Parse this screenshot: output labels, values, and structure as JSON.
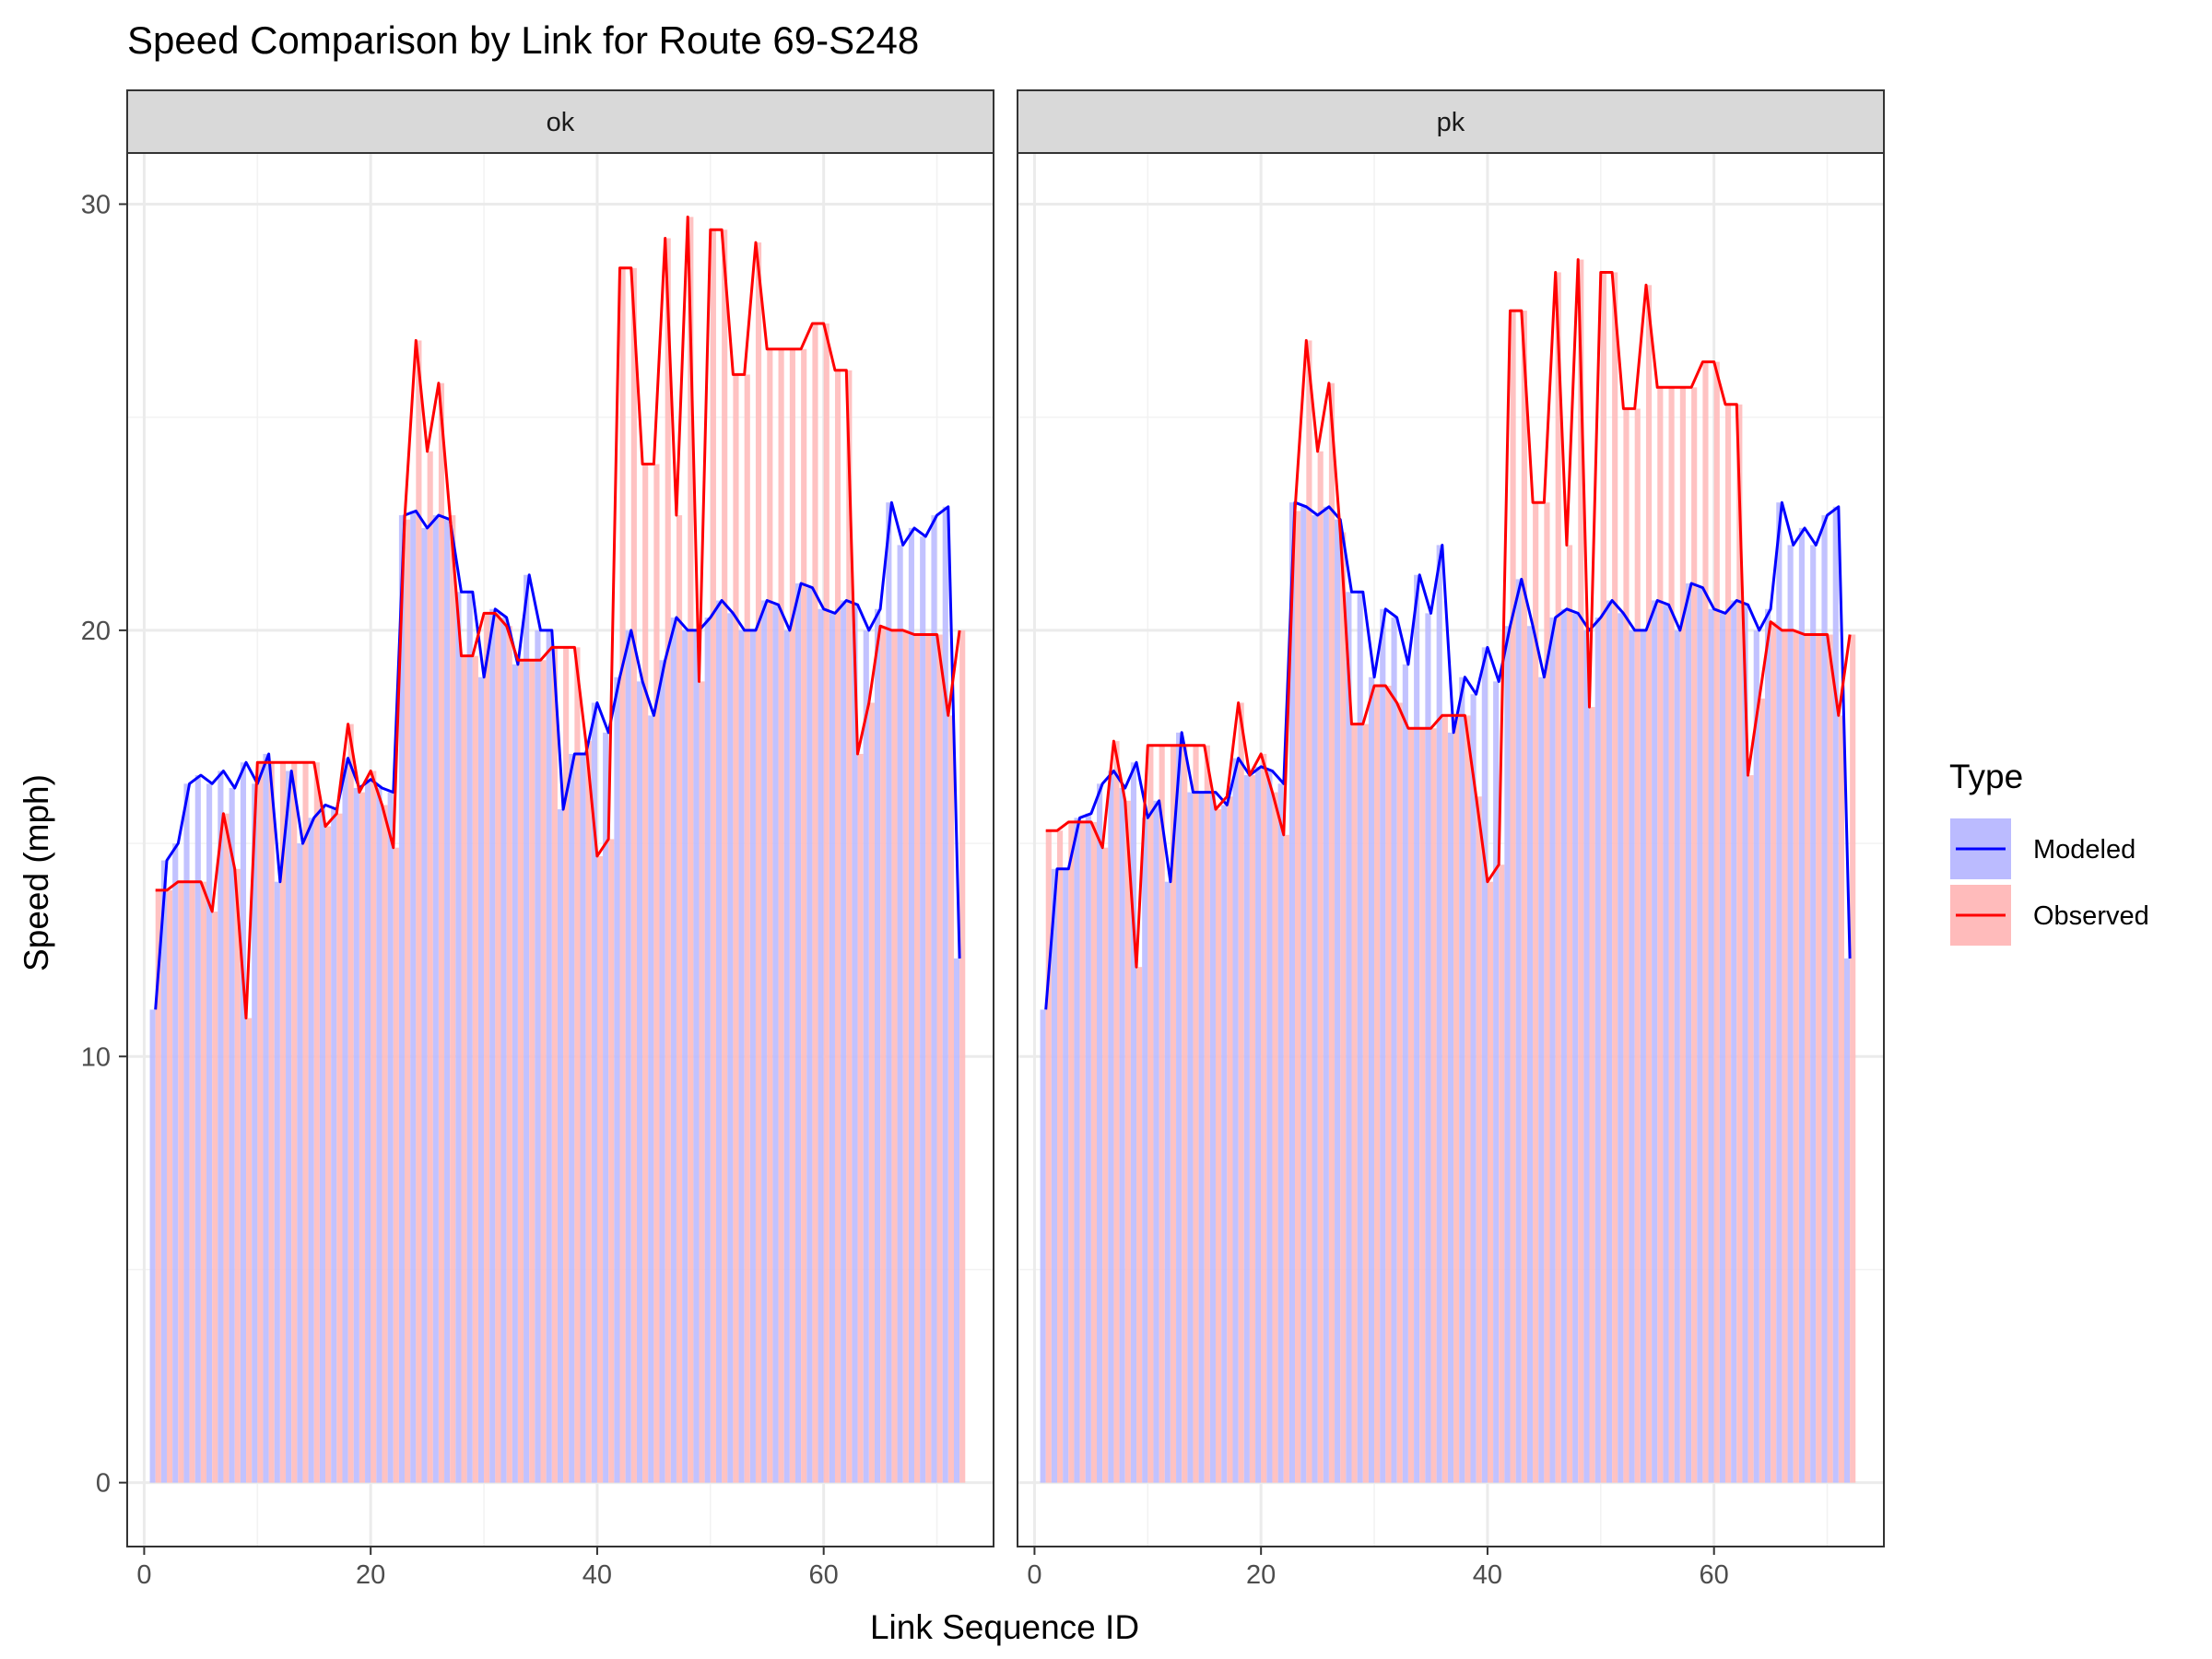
{
  "chart_data": {
    "type": "line",
    "title": "Speed Comparison by Link for Route 69-S248",
    "xlabel": "Link Sequence ID",
    "ylabel": "Speed (mph)",
    "xlim": [
      -1.5,
      75
    ],
    "ylim": [
      -1.5,
      31.2
    ],
    "x_ticks": [
      0,
      20,
      40,
      60
    ],
    "y_ticks": [
      0,
      10,
      20,
      30
    ],
    "grid": true,
    "legend": {
      "title": "Type",
      "position": "right",
      "entries": [
        {
          "label": "Modeled",
          "line_color": "#0000ff",
          "fill_color": "#bbbbff"
        },
        {
          "label": "Observed",
          "line_color": "#ff0000",
          "fill_color": "#ffbbbb"
        }
      ]
    },
    "x": [
      1,
      2,
      3,
      4,
      5,
      6,
      7,
      8,
      9,
      10,
      11,
      12,
      13,
      14,
      15,
      16,
      17,
      18,
      19,
      20,
      21,
      22,
      23,
      24,
      25,
      26,
      27,
      28,
      29,
      30,
      31,
      32,
      33,
      34,
      35,
      36,
      37,
      38,
      39,
      40,
      41,
      42,
      43,
      44,
      45,
      46,
      47,
      48,
      49,
      50,
      51,
      52,
      53,
      54,
      55,
      56,
      57,
      58,
      59,
      60,
      61,
      62,
      63,
      64,
      65,
      66,
      67,
      68,
      69,
      70,
      71,
      72
    ],
    "panels": [
      {
        "label": "ok",
        "series": [
          {
            "name": "Modeled",
            "values": [
              11.1,
              14.6,
              15.0,
              16.4,
              16.6,
              16.4,
              16.7,
              16.3,
              16.9,
              16.4,
              17.1,
              14.1,
              16.7,
              15.0,
              15.6,
              15.9,
              15.8,
              17.0,
              16.3,
              16.5,
              16.3,
              16.2,
              22.7,
              22.8,
              22.4,
              22.7,
              22.6,
              20.9,
              20.9,
              18.9,
              20.5,
              20.3,
              19.2,
              21.3,
              20.0,
              20.0,
              15.8,
              17.1,
              17.1,
              18.3,
              17.6,
              18.9,
              20.0,
              18.8,
              18.0,
              19.3,
              20.3,
              20.0,
              20.0,
              20.3,
              20.7,
              20.4,
              20.0,
              20.0,
              20.7,
              20.6,
              20.0,
              21.1,
              21.0,
              20.5,
              20.4,
              20.7,
              20.6,
              20.0,
              20.5,
              23.0,
              22.0,
              22.4,
              22.2,
              22.7,
              22.9,
              12.3
            ]
          },
          {
            "name": "Observed",
            "values": [
              13.9,
              13.9,
              14.1,
              14.1,
              14.1,
              13.4,
              15.7,
              14.4,
              10.9,
              16.9,
              16.9,
              16.9,
              16.9,
              16.9,
              16.9,
              15.4,
              15.7,
              17.8,
              16.2,
              16.7,
              15.9,
              14.9,
              22.6,
              26.8,
              24.2,
              25.8,
              22.7,
              19.4,
              19.4,
              20.4,
              20.4,
              20.1,
              19.3,
              19.3,
              19.3,
              19.6,
              19.6,
              19.6,
              17.4,
              14.7,
              15.1,
              28.5,
              28.5,
              23.9,
              23.9,
              29.2,
              22.7,
              29.7,
              18.8,
              29.4,
              29.4,
              26.0,
              26.0,
              29.1,
              26.6,
              26.6,
              26.6,
              26.6,
              27.2,
              27.2,
              26.1,
              26.1,
              17.1,
              18.3,
              20.1,
              20.0,
              20.0,
              19.9,
              19.9,
              19.9,
              18.0,
              20.0
            ]
          }
        ]
      },
      {
        "label": "pk",
        "series": [
          {
            "name": "Modeled",
            "values": [
              11.1,
              14.4,
              14.4,
              15.6,
              15.7,
              16.4,
              16.7,
              16.3,
              16.9,
              15.6,
              16.0,
              14.1,
              17.6,
              16.2,
              16.2,
              16.2,
              15.9,
              17.0,
              16.6,
              16.8,
              16.7,
              16.4,
              23.0,
              22.9,
              22.7,
              22.9,
              22.6,
              20.9,
              20.9,
              18.9,
              20.5,
              20.3,
              19.2,
              21.3,
              20.4,
              22.0,
              17.6,
              18.9,
              18.5,
              19.6,
              18.8,
              20.1,
              21.2,
              20.1,
              18.9,
              20.3,
              20.5,
              20.4,
              20.0,
              20.3,
              20.7,
              20.4,
              20.0,
              20.0,
              20.7,
              20.6,
              20.0,
              21.1,
              21.0,
              20.5,
              20.4,
              20.7,
              20.6,
              20.0,
              20.5,
              23.0,
              22.0,
              22.4,
              22.0,
              22.7,
              22.9,
              12.3
            ]
          },
          {
            "name": "Observed",
            "values": [
              15.3,
              15.3,
              15.5,
              15.5,
              15.5,
              14.9,
              17.4,
              16.0,
              12.1,
              17.3,
              17.3,
              17.3,
              17.3,
              17.3,
              17.3,
              15.8,
              16.1,
              18.3,
              16.6,
              17.1,
              16.2,
              15.2,
              22.8,
              26.8,
              24.2,
              25.8,
              22.3,
              17.8,
              17.8,
              18.7,
              18.7,
              18.3,
              17.7,
              17.7,
              17.7,
              18.0,
              18.0,
              18.0,
              16.1,
              14.1,
              14.5,
              27.5,
              27.5,
              23.0,
              23.0,
              28.4,
              22.0,
              28.7,
              18.2,
              28.4,
              28.4,
              25.2,
              25.2,
              28.1,
              25.7,
              25.7,
              25.7,
              25.7,
              26.3,
              26.3,
              25.3,
              25.3,
              16.6,
              18.4,
              20.2,
              20.0,
              20.0,
              19.9,
              19.9,
              19.9,
              18.0,
              19.9
            ]
          }
        ]
      }
    ]
  }
}
